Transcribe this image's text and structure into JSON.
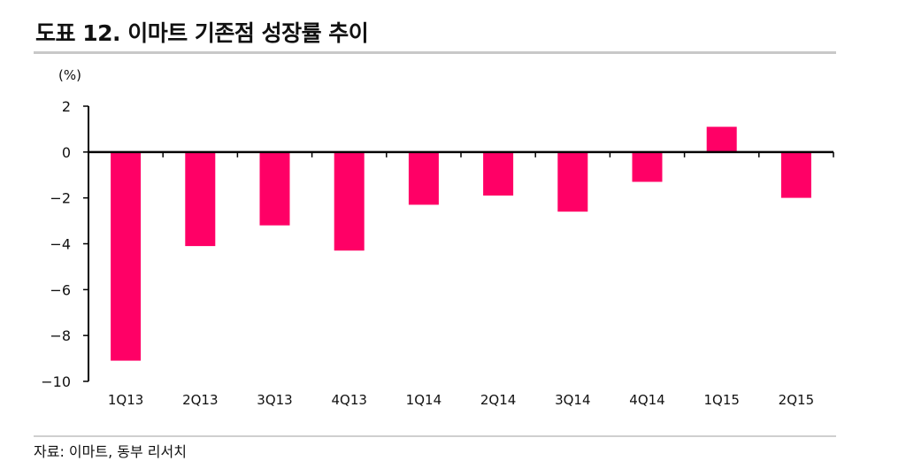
{
  "header": {
    "title": "도표 12. 이마트 기존점 성장률 추이"
  },
  "footer": {
    "source": "자료: 이마트, 동부 리서치"
  },
  "chart_data": {
    "type": "bar",
    "unit_label": "(%)",
    "categories": [
      "1Q13",
      "2Q13",
      "3Q13",
      "4Q13",
      "1Q14",
      "2Q14",
      "3Q14",
      "4Q14",
      "1Q15",
      "2Q15"
    ],
    "values": [
      -9.1,
      -4.1,
      -3.2,
      -4.3,
      -2.3,
      -1.9,
      -2.6,
      -1.3,
      1.1,
      -2.0
    ],
    "ylim": [
      -10,
      2
    ],
    "yticks": [
      2,
      0,
      -2,
      -4,
      -6,
      -8,
      -10
    ],
    "ytick_labels": [
      "2",
      "0",
      "−2",
      "−4",
      "−6",
      "−8",
      "−10"
    ],
    "bar_color": "#ff0066",
    "grid": false,
    "legend": "none"
  }
}
